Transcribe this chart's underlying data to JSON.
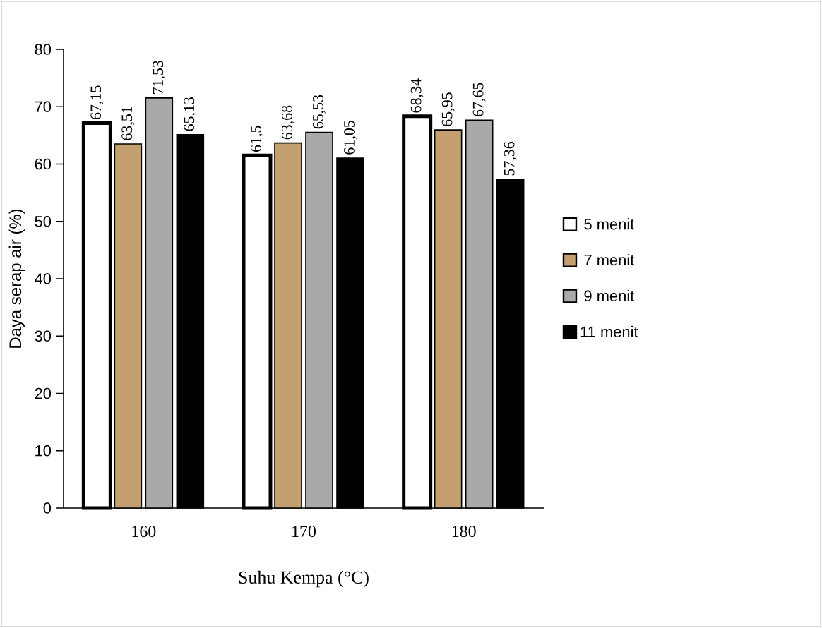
{
  "chart_data": {
    "type": "bar",
    "xlabel": "Suhu Kempa (°C)",
    "ylabel": "Daya serap air (%)",
    "categories": [
      "160",
      "170",
      "180"
    ],
    "series": [
      {
        "name": "5 menit",
        "color": "#ffffff",
        "values": [
          67.15,
          61.5,
          68.34
        ],
        "value_labels": [
          "67,15",
          "61,5",
          "68,34"
        ]
      },
      {
        "name": "7 menit",
        "color": "#c4a070",
        "values": [
          63.51,
          63.68,
          65.95
        ],
        "value_labels": [
          "63,51",
          "63,68",
          "65,95"
        ]
      },
      {
        "name": "9 menit",
        "color": "#a9a9a9",
        "values": [
          71.53,
          65.53,
          67.65
        ],
        "value_labels": [
          "71,53",
          "65,53",
          "67,65"
        ]
      },
      {
        "name": "11 menit",
        "color": "#000000",
        "values": [
          65.13,
          61.05,
          57.36
        ],
        "value_labels": [
          "65,13",
          "61,05",
          "57,36"
        ]
      }
    ],
    "ylim": [
      0,
      80
    ],
    "yticks": [
      0,
      10,
      20,
      30,
      40,
      50,
      60,
      70,
      80
    ],
    "grid": false,
    "legend": "right"
  }
}
